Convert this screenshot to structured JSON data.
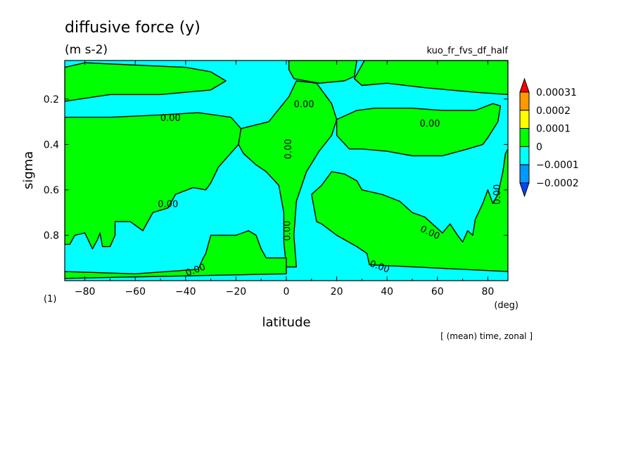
{
  "chart_data": {
    "type": "contour",
    "title": "diffusive force (y)",
    "units": "(m s-2)",
    "dataset": "kuo_fr_fvs_df_half",
    "xlabel": "latitude",
    "ylabel": "sigma",
    "x_unit": "(deg)",
    "panel_label": "(1)",
    "footer": "[ (mean) time, zonal ]",
    "xlim": [
      -88,
      88
    ],
    "ylim": [
      1.0,
      0.03
    ],
    "y_reversed": true,
    "xticks": [
      -80,
      -60,
      -40,
      -20,
      0,
      20,
      40,
      60,
      80
    ],
    "yticks": [
      0.2,
      0.4,
      0.6,
      0.8
    ],
    "contour_label": "0.00",
    "colorbar": {
      "levels": [
        "0.00031",
        "0.0002",
        "0.0001",
        "0",
        "-0.0001",
        "-0.0002"
      ],
      "colors": [
        "#ff0000",
        "#ff9900",
        "#ffff00",
        "#00ff00",
        "#00ffff",
        "#0099ff",
        "#0044ff"
      ],
      "extend": "both"
    },
    "fill": {
      "background_color": "#00ffff",
      "negative_color": "#00ffff",
      "positive_color": "#00ff00",
      "positive_regions": [
        {
          "region": "top-left",
          "points": [
            [
              -88,
              0.06
            ],
            [
              -80,
              0.04
            ],
            [
              -60,
              0.05
            ],
            [
              -40,
              0.06
            ],
            [
              -30,
              0.08
            ],
            [
              -24,
              0.12
            ],
            [
              -30,
              0.16
            ],
            [
              -50,
              0.18
            ],
            [
              -70,
              0.18
            ],
            [
              -88,
              0.21
            ]
          ]
        },
        {
          "region": "top-center",
          "points": [
            [
              1,
              0.03
            ],
            [
              28,
              0.03
            ],
            [
              27,
              0.1
            ],
            [
              23,
              0.12
            ],
            [
              13,
              0.13
            ],
            [
              3,
              0.11
            ],
            [
              1,
              0.07
            ]
          ]
        },
        {
          "region": "top-right",
          "points": [
            [
              31,
              0.03
            ],
            [
              88,
              0.03
            ],
            [
              88,
              0.18
            ],
            [
              75,
              0.17
            ],
            [
              55,
              0.15
            ],
            [
              40,
              0.13
            ],
            [
              30,
              0.14
            ],
            [
              27,
              0.11
            ]
          ]
        },
        {
          "region": "west-land",
          "points": [
            [
              -88,
              0.28
            ],
            [
              -70,
              0.28
            ],
            [
              -50,
              0.27
            ],
            [
              -35,
              0.26
            ],
            [
              -22,
              0.28
            ],
            [
              -18,
              0.33
            ],
            [
              -19,
              0.4
            ],
            [
              -27,
              0.5
            ],
            [
              -30,
              0.57
            ],
            [
              -32,
              0.6
            ],
            [
              -37,
              0.59
            ],
            [
              -44,
              0.62
            ],
            [
              -47,
              0.68
            ],
            [
              -53,
              0.7
            ],
            [
              -55,
              0.74
            ],
            [
              -57,
              0.78
            ],
            [
              -62,
              0.74
            ],
            [
              -68,
              0.74
            ],
            [
              -68,
              0.8
            ],
            [
              -70,
              0.85
            ],
            [
              -73,
              0.85
            ],
            [
              -74,
              0.79
            ],
            [
              -75,
              0.82
            ],
            [
              -77,
              0.86
            ],
            [
              -80,
              0.79
            ],
            [
              -84,
              0.8
            ],
            [
              -86,
              0.84
            ],
            [
              -88,
              0.84
            ]
          ]
        },
        {
          "region": "center-column",
          "points": [
            [
              -18,
              0.33
            ],
            [
              -7,
              0.3
            ],
            [
              1,
              0.19
            ],
            [
              4,
              0.12
            ],
            [
              12,
              0.13
            ],
            [
              14,
              0.16
            ],
            [
              18,
              0.22
            ],
            [
              20,
              0.29
            ],
            [
              18,
              0.36
            ],
            [
              13,
              0.43
            ],
            [
              8,
              0.52
            ],
            [
              4,
              0.65
            ],
            [
              3,
              0.8
            ],
            [
              4,
              0.94
            ],
            [
              0,
              0.94
            ],
            [
              -1,
              0.83
            ],
            [
              -1,
              0.7
            ],
            [
              -3,
              0.58
            ],
            [
              -8,
              0.52
            ],
            [
              -12,
              0.49
            ],
            [
              -17,
              0.44
            ],
            [
              -19,
              0.4
            ]
          ]
        },
        {
          "region": "east-land",
          "points": [
            [
              10,
              0.62
            ],
            [
              14,
              0.58
            ],
            [
              18,
              0.52
            ],
            [
              23,
              0.53
            ],
            [
              28,
              0.56
            ],
            [
              30,
              0.6
            ],
            [
              38,
              0.62
            ],
            [
              45,
              0.65
            ],
            [
              50,
              0.7
            ],
            [
              55,
              0.72
            ],
            [
              58,
              0.75
            ],
            [
              62,
              0.79
            ],
            [
              65,
              0.75
            ],
            [
              68,
              0.8
            ],
            [
              70,
              0.83
            ],
            [
              72,
              0.78
            ],
            [
              74,
              0.8
            ],
            [
              75,
              0.73
            ],
            [
              78,
              0.66
            ],
            [
              80,
              0.6
            ],
            [
              82,
              0.66
            ],
            [
              84,
              0.62
            ],
            [
              86,
              0.52
            ],
            [
              87,
              0.44
            ],
            [
              88,
              0.42
            ],
            [
              88,
              0.96
            ],
            [
              33,
              0.93
            ],
            [
              32,
              0.88
            ],
            [
              28,
              0.85
            ],
            [
              20,
              0.8
            ],
            [
              14,
              0.75
            ],
            [
              12,
              0.74
            ]
          ]
        },
        {
          "region": "east-upper",
          "points": [
            [
              20,
              0.29
            ],
            [
              28,
              0.25
            ],
            [
              35,
              0.24
            ],
            [
              50,
              0.24
            ],
            [
              62,
              0.25
            ],
            [
              75,
              0.25
            ],
            [
              82,
              0.22
            ],
            [
              85,
              0.23
            ],
            [
              84,
              0.3
            ],
            [
              80,
              0.37
            ],
            [
              78,
              0.4
            ],
            [
              72,
              0.42
            ],
            [
              62,
              0.45
            ],
            [
              50,
              0.45
            ],
            [
              40,
              0.43
            ],
            [
              30,
              0.42
            ],
            [
              25,
              0.42
            ],
            [
              20,
              0.36
            ]
          ]
        },
        {
          "region": "south-west-lower",
          "points": [
            [
              -88,
              0.96
            ],
            [
              -60,
              0.97
            ],
            [
              -35,
              0.95
            ],
            [
              -33,
              0.9
            ],
            [
              -32,
              0.88
            ],
            [
              -30,
              0.8
            ],
            [
              -20,
              0.8
            ],
            [
              -15,
              0.78
            ],
            [
              -12,
              0.8
            ],
            [
              -10,
              0.86
            ],
            [
              -8,
              0.9
            ],
            [
              0,
              0.9
            ],
            [
              0,
              0.97
            ],
            [
              -88,
              0.99
            ]
          ]
        }
      ]
    }
  }
}
